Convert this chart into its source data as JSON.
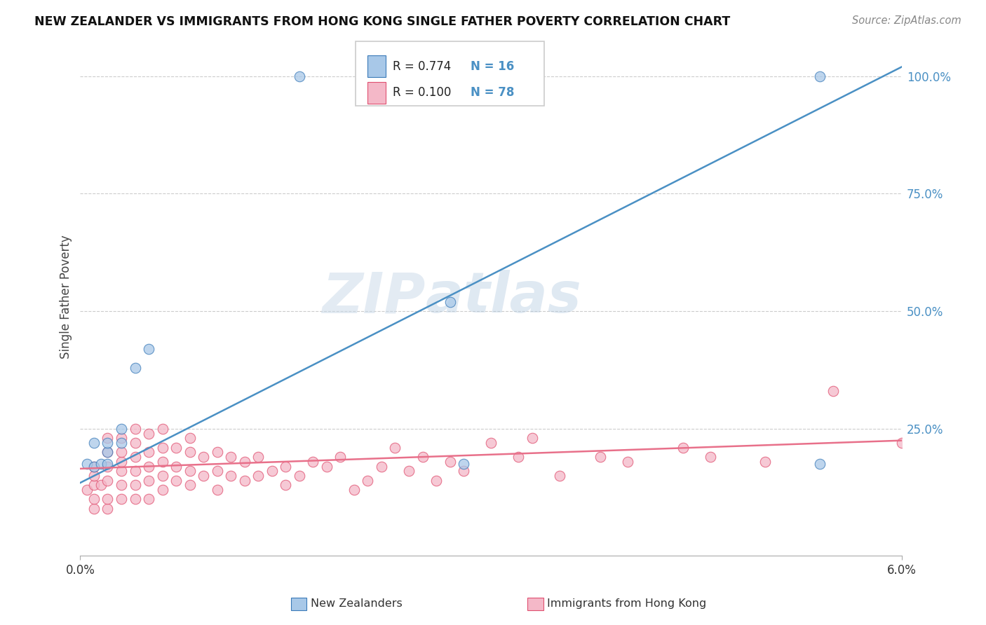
{
  "title": "NEW ZEALANDER VS IMMIGRANTS FROM HONG KONG SINGLE FATHER POVERTY CORRELATION CHART",
  "source": "Source: ZipAtlas.com",
  "ylabel": "Single Father Poverty",
  "xlim": [
    0.0,
    0.06
  ],
  "ylim": [
    -0.02,
    1.08
  ],
  "color_blue": "#a8c8e8",
  "color_pink": "#f4b8c8",
  "color_blue_line": "#4a90c4",
  "color_pink_line": "#e8708a",
  "color_blue_dark": "#3a7ab8",
  "color_pink_dark": "#e05070",
  "watermark_zip": "ZIP",
  "watermark_atlas": "atlas",
  "nz_x": [
    0.0005,
    0.001,
    0.001,
    0.0015,
    0.002,
    0.002,
    0.002,
    0.003,
    0.003,
    0.004,
    0.005,
    0.016,
    0.027,
    0.028,
    0.054,
    0.054
  ],
  "nz_y": [
    0.175,
    0.17,
    0.22,
    0.175,
    0.2,
    0.175,
    0.22,
    0.22,
    0.25,
    0.38,
    0.42,
    1.0,
    0.52,
    0.175,
    1.0,
    0.175
  ],
  "hk_x": [
    0.0005,
    0.001,
    0.001,
    0.001,
    0.001,
    0.001,
    0.0015,
    0.002,
    0.002,
    0.002,
    0.002,
    0.002,
    0.002,
    0.003,
    0.003,
    0.003,
    0.003,
    0.003,
    0.003,
    0.004,
    0.004,
    0.004,
    0.004,
    0.004,
    0.004,
    0.005,
    0.005,
    0.005,
    0.005,
    0.005,
    0.006,
    0.006,
    0.006,
    0.006,
    0.006,
    0.007,
    0.007,
    0.007,
    0.008,
    0.008,
    0.008,
    0.008,
    0.009,
    0.009,
    0.01,
    0.01,
    0.01,
    0.011,
    0.011,
    0.012,
    0.012,
    0.013,
    0.013,
    0.014,
    0.015,
    0.015,
    0.016,
    0.017,
    0.018,
    0.019,
    0.02,
    0.021,
    0.022,
    0.023,
    0.024,
    0.025,
    0.026,
    0.027,
    0.028,
    0.03,
    0.032,
    0.033,
    0.035,
    0.038,
    0.04,
    0.044,
    0.046,
    0.05,
    0.055,
    0.06
  ],
  "hk_y": [
    0.12,
    0.08,
    0.1,
    0.13,
    0.15,
    0.17,
    0.13,
    0.08,
    0.1,
    0.14,
    0.17,
    0.2,
    0.23,
    0.1,
    0.13,
    0.16,
    0.18,
    0.2,
    0.23,
    0.1,
    0.13,
    0.16,
    0.19,
    0.22,
    0.25,
    0.1,
    0.14,
    0.17,
    0.2,
    0.24,
    0.12,
    0.15,
    0.18,
    0.21,
    0.25,
    0.14,
    0.17,
    0.21,
    0.13,
    0.16,
    0.2,
    0.23,
    0.15,
    0.19,
    0.12,
    0.16,
    0.2,
    0.15,
    0.19,
    0.14,
    0.18,
    0.15,
    0.19,
    0.16,
    0.13,
    0.17,
    0.15,
    0.18,
    0.17,
    0.19,
    0.12,
    0.14,
    0.17,
    0.21,
    0.16,
    0.19,
    0.14,
    0.18,
    0.16,
    0.22,
    0.19,
    0.23,
    0.15,
    0.19,
    0.18,
    0.21,
    0.19,
    0.18,
    0.33,
    0.22
  ],
  "blue_line_x": [
    0.0,
    0.06
  ],
  "blue_line_y": [
    0.135,
    1.02
  ],
  "pink_line_x": [
    0.0,
    0.06
  ],
  "pink_line_y": [
    0.165,
    0.225
  ]
}
